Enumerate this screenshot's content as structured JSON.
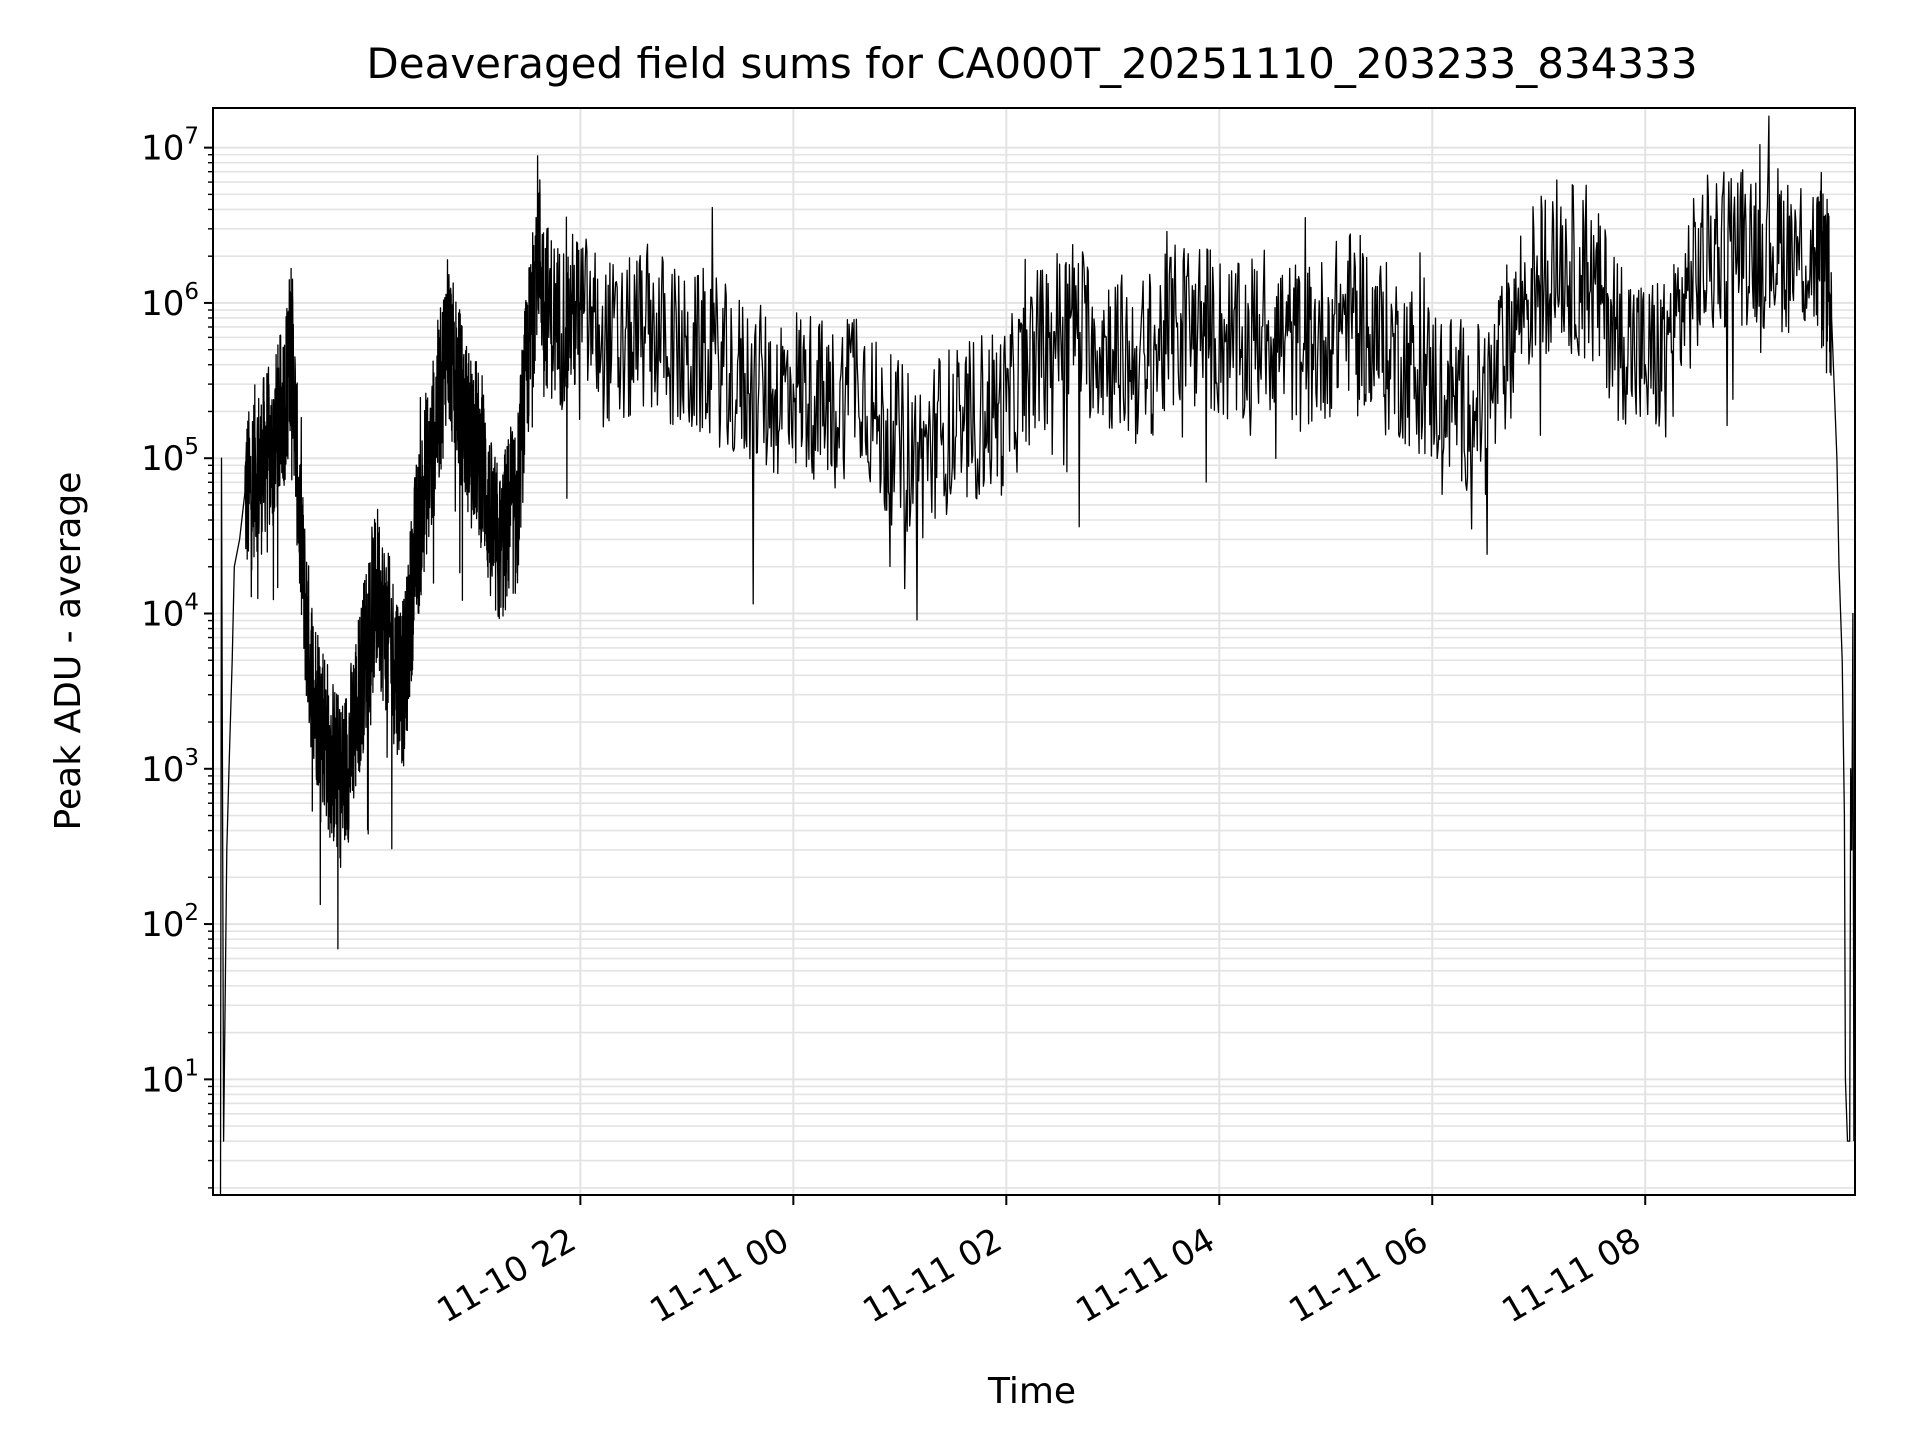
{
  "chart_data": {
    "type": "line",
    "title": "Deaveraged field sums for CA000T_20251110_203233_834333",
    "xlabel": "Time",
    "ylabel": "Peak ADU - average",
    "yscale": "log",
    "ylim": [
      1.8,
      18000000
    ],
    "xlim_hours": [
      -3.45,
      11.97
    ],
    "grid": true,
    "x_tick_labels": [
      "11-10 22",
      "11-11 00",
      "11-11 02",
      "11-11 04",
      "11-11 06",
      "11-11 08"
    ],
    "x_tick_hours": [
      0,
      2,
      4,
      6,
      8,
      10
    ],
    "x_axis_note": "x values are hours relative to 2025-11-10 22:00",
    "y_tick_exponents": [
      "1",
      "2",
      "3",
      "4",
      "5",
      "6",
      "7"
    ],
    "y_tick_values": [
      10,
      100,
      1000,
      10000,
      100000,
      1000000,
      10000000
    ],
    "series": [
      {
        "name": "Deaveraged field sum",
        "color": "#000000",
        "points": [
          [
            -3.44,
            1.8
          ],
          [
            -3.38,
            1.8
          ],
          [
            -3.37,
            100000
          ],
          [
            -3.35,
            4
          ],
          [
            -3.32,
            300
          ],
          [
            -3.3,
            1000
          ],
          [
            -3.27,
            5000
          ],
          [
            -3.25,
            20000
          ],
          [
            -3.2,
            30000
          ],
          [
            -3.15,
            60000
          ],
          [
            -3.1,
            60000
          ],
          [
            -3.05,
            90000
          ],
          [
            -3.0,
            80000
          ],
          [
            -2.95,
            120000
          ],
          [
            -2.9,
            100000
          ],
          [
            -2.85,
            150000
          ],
          [
            -2.8,
            200000
          ],
          [
            -2.75,
            300000
          ],
          [
            -2.72,
            600000
          ],
          [
            -2.7,
            400000
          ],
          [
            -2.65,
            60000
          ],
          [
            -2.6,
            15000
          ],
          [
            -2.55,
            6000
          ],
          [
            -2.5,
            3000
          ],
          [
            -2.45,
            2500
          ],
          [
            -2.4,
            1800
          ],
          [
            -2.35,
            1200
          ],
          [
            -2.3,
            1000
          ],
          [
            -2.25,
            800
          ],
          [
            -2.2,
            1000
          ],
          [
            -2.15,
            1500
          ],
          [
            -2.1,
            2500
          ],
          [
            -2.05,
            4000
          ],
          [
            -2.0,
            7000
          ],
          [
            -1.95,
            10000
          ],
          [
            -1.9,
            15000
          ],
          [
            -1.85,
            9000
          ],
          [
            -1.8,
            7000
          ],
          [
            -1.75,
            5000
          ],
          [
            -1.7,
            4000
          ],
          [
            -1.65,
            3500
          ],
          [
            -1.6,
            10000
          ],
          [
            -1.55,
            25000
          ],
          [
            -1.5,
            40000
          ],
          [
            -1.45,
            80000
          ],
          [
            -1.4,
            100000
          ],
          [
            -1.35,
            200000
          ],
          [
            -1.3,
            300000
          ],
          [
            -1.25,
            700000
          ],
          [
            -1.2,
            400000
          ],
          [
            -1.15,
            300000
          ],
          [
            -1.1,
            200000
          ],
          [
            -1.05,
            150000
          ],
          [
            -1.0,
            150000
          ],
          [
            -0.95,
            100000
          ],
          [
            -0.9,
            80000
          ],
          [
            -0.85,
            40000
          ],
          [
            -0.8,
            30000
          ],
          [
            -0.75,
            25000
          ],
          [
            -0.7,
            35000
          ],
          [
            -0.65,
            50000
          ],
          [
            -0.6,
            40000
          ],
          [
            -0.55,
            150000
          ],
          [
            -0.5,
            400000
          ],
          [
            -0.45,
            800000
          ],
          [
            -0.4,
            2800000
          ],
          [
            -0.35,
            1200000
          ],
          [
            -0.3,
            900000
          ],
          [
            -0.2,
            700000
          ],
          [
            -0.1,
            800000
          ],
          [
            0.0,
            900000
          ],
          [
            0.2,
            600000
          ],
          [
            0.4,
            500000
          ],
          [
            0.6,
            700000
          ],
          [
            0.8,
            600000
          ],
          [
            1.0,
            400000
          ],
          [
            1.2,
            500000
          ],
          [
            1.4,
            350000
          ],
          [
            1.6,
            300000
          ],
          [
            1.8,
            250000
          ],
          [
            2.0,
            300000
          ],
          [
            2.2,
            250000
          ],
          [
            2.4,
            200000
          ],
          [
            2.6,
            400000
          ],
          [
            2.8,
            150000
          ],
          [
            3.0,
            120000
          ],
          [
            3.2,
            100000
          ],
          [
            3.4,
            150000
          ],
          [
            3.6,
            150000
          ],
          [
            3.8,
            200000
          ],
          [
            4.0,
            200000
          ],
          [
            4.2,
            400000
          ],
          [
            4.4,
            600000
          ],
          [
            4.6,
            800000
          ],
          [
            4.8,
            600000
          ],
          [
            5.0,
            500000
          ],
          [
            5.2,
            400000
          ],
          [
            5.4,
            500000
          ],
          [
            5.6,
            700000
          ],
          [
            5.8,
            800000
          ],
          [
            6.0,
            600000
          ],
          [
            6.2,
            500000
          ],
          [
            6.4,
            700000
          ],
          [
            6.6,
            600000
          ],
          [
            6.8,
            500000
          ],
          [
            7.0,
            600000
          ],
          [
            7.2,
            900000
          ],
          [
            7.4,
            700000
          ],
          [
            7.6,
            500000
          ],
          [
            7.8,
            400000
          ],
          [
            8.0,
            300000
          ],
          [
            8.2,
            250000
          ],
          [
            8.4,
            200000
          ],
          [
            8.6,
            300000
          ],
          [
            8.8,
            900000
          ],
          [
            9.0,
            1500000
          ],
          [
            9.2,
            2000000
          ],
          [
            9.4,
            1500000
          ],
          [
            9.6,
            1000000
          ],
          [
            9.8,
            600000
          ],
          [
            10.0,
            400000
          ],
          [
            10.2,
            500000
          ],
          [
            10.4,
            1200000
          ],
          [
            10.6,
            2000000
          ],
          [
            10.8,
            2500000
          ],
          [
            11.0,
            2500000
          ],
          [
            11.2,
            2300000
          ],
          [
            11.4,
            2200000
          ],
          [
            11.6,
            2000000
          ],
          [
            11.7,
            1500000
          ],
          [
            11.75,
            800000
          ],
          [
            11.8,
            100000
          ],
          [
            11.82,
            20000
          ],
          [
            11.85,
            5000
          ],
          [
            11.87,
            500
          ],
          [
            11.88,
            10
          ],
          [
            11.9,
            4
          ],
          [
            11.92,
            4
          ],
          [
            11.93,
            1000
          ],
          [
            11.94,
            300
          ],
          [
            11.95,
            10000
          ],
          [
            11.96,
            4
          ]
        ]
      }
    ]
  }
}
